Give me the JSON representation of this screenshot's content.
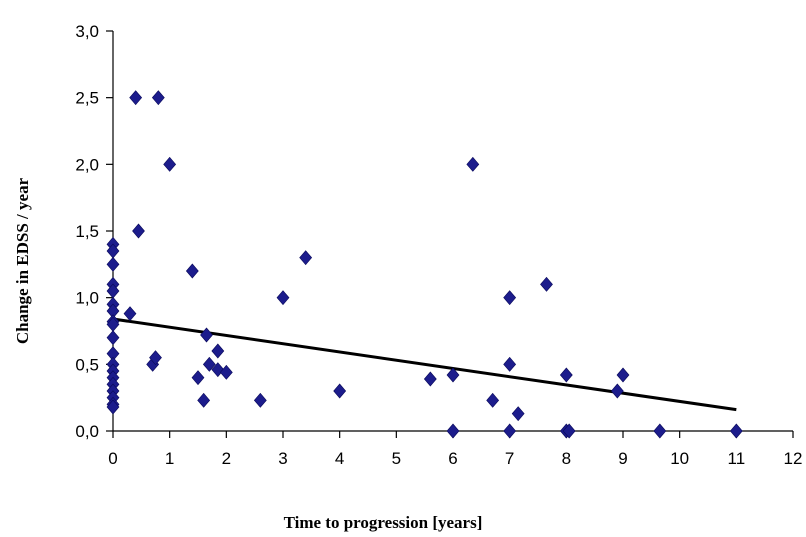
{
  "chart_data": {
    "type": "scatter",
    "xlabel": "Time to progression [years]",
    "ylabel": "Change in EDSS / year",
    "xlim": [
      0,
      12
    ],
    "ylim": [
      0,
      3
    ],
    "x_ticks": [
      0,
      1,
      2,
      3,
      4,
      5,
      6,
      7,
      8,
      9,
      10,
      11,
      12
    ],
    "y_ticks": [
      0,
      0.5,
      1,
      1.5,
      2,
      2.5,
      3
    ],
    "x_tick_labels": [
      "0",
      "1",
      "2",
      "3",
      "4",
      "5",
      "6",
      "7",
      "8",
      "9",
      "10",
      "11",
      "12"
    ],
    "y_tick_labels": [
      "0,0",
      "0,5",
      "1,0",
      "1,5",
      "2,0",
      "2,5",
      "3,0"
    ],
    "grid": false,
    "marker": "diamond",
    "point_color": "#1c1c8c",
    "points": [
      {
        "x": 0,
        "y": 1.4
      },
      {
        "x": 0,
        "y": 1.35
      },
      {
        "x": 0,
        "y": 1.25
      },
      {
        "x": 0,
        "y": 1.1
      },
      {
        "x": 0,
        "y": 1.05
      },
      {
        "x": 0,
        "y": 0.95
      },
      {
        "x": 0,
        "y": 0.9
      },
      {
        "x": 0,
        "y": 0.82
      },
      {
        "x": 0,
        "y": 0.8
      },
      {
        "x": 0,
        "y": 0.7
      },
      {
        "x": 0,
        "y": 0.58
      },
      {
        "x": 0,
        "y": 0.5
      },
      {
        "x": 0,
        "y": 0.45
      },
      {
        "x": 0,
        "y": 0.4
      },
      {
        "x": 0,
        "y": 0.35
      },
      {
        "x": 0,
        "y": 0.3
      },
      {
        "x": 0,
        "y": 0.25
      },
      {
        "x": 0,
        "y": 0.2
      },
      {
        "x": 0,
        "y": 0.18
      },
      {
        "x": 0.3,
        "y": 0.88
      },
      {
        "x": 0.4,
        "y": 2.5
      },
      {
        "x": 0.45,
        "y": 1.5
      },
      {
        "x": 0.7,
        "y": 0.5
      },
      {
        "x": 0.75,
        "y": 0.55
      },
      {
        "x": 0.8,
        "y": 2.5
      },
      {
        "x": 1.0,
        "y": 2.0
      },
      {
        "x": 1.4,
        "y": 1.2
      },
      {
        "x": 1.5,
        "y": 0.4
      },
      {
        "x": 1.6,
        "y": 0.23
      },
      {
        "x": 1.65,
        "y": 0.72
      },
      {
        "x": 1.7,
        "y": 0.5
      },
      {
        "x": 1.85,
        "y": 0.6
      },
      {
        "x": 1.85,
        "y": 0.46
      },
      {
        "x": 2.0,
        "y": 0.44
      },
      {
        "x": 2.6,
        "y": 0.23
      },
      {
        "x": 3.0,
        "y": 1.0
      },
      {
        "x": 3.4,
        "y": 1.3
      },
      {
        "x": 4.0,
        "y": 0.3
      },
      {
        "x": 5.6,
        "y": 0.39
      },
      {
        "x": 6.0,
        "y": 0.42
      },
      {
        "x": 6.0,
        "y": 0.0
      },
      {
        "x": 6.35,
        "y": 2.0
      },
      {
        "x": 6.7,
        "y": 0.23
      },
      {
        "x": 7.0,
        "y": 1.0
      },
      {
        "x": 7.0,
        "y": 0.5
      },
      {
        "x": 7.0,
        "y": 0.0
      },
      {
        "x": 7.15,
        "y": 0.13
      },
      {
        "x": 7.65,
        "y": 1.1
      },
      {
        "x": 8.0,
        "y": 0.42
      },
      {
        "x": 8.0,
        "y": 0.0
      },
      {
        "x": 8.05,
        "y": 0.0
      },
      {
        "x": 8.9,
        "y": 0.3
      },
      {
        "x": 9.0,
        "y": 0.42
      },
      {
        "x": 9.65,
        "y": 0.0
      },
      {
        "x": 11.0,
        "y": 0.0
      }
    ],
    "trendline": {
      "x": [
        0,
        11
      ],
      "y": [
        0.84,
        0.16
      ]
    }
  }
}
